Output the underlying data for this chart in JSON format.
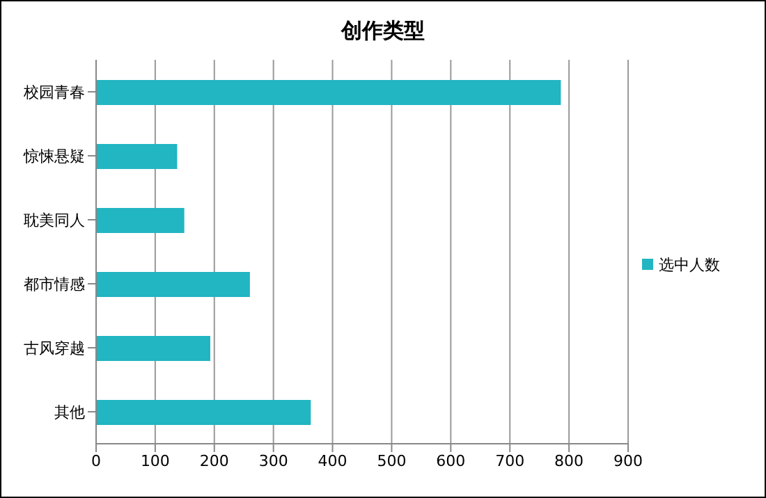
{
  "chart_data": {
    "type": "bar",
    "orientation": "horizontal",
    "title": "创作类型",
    "categories": [
      "校园青春",
      "惊悚悬疑",
      "耽美同人",
      "都市情感",
      "古风穿越",
      "其他"
    ],
    "series": [
      {
        "name": "选中人数",
        "color": "#22b5c2",
        "values": [
          785,
          136,
          148,
          259,
          192,
          362
        ]
      }
    ],
    "xlim": [
      0,
      900
    ],
    "xticks": [
      0,
      100,
      200,
      300,
      400,
      500,
      600,
      700,
      800,
      900
    ],
    "grid": "x",
    "legend": "right"
  }
}
